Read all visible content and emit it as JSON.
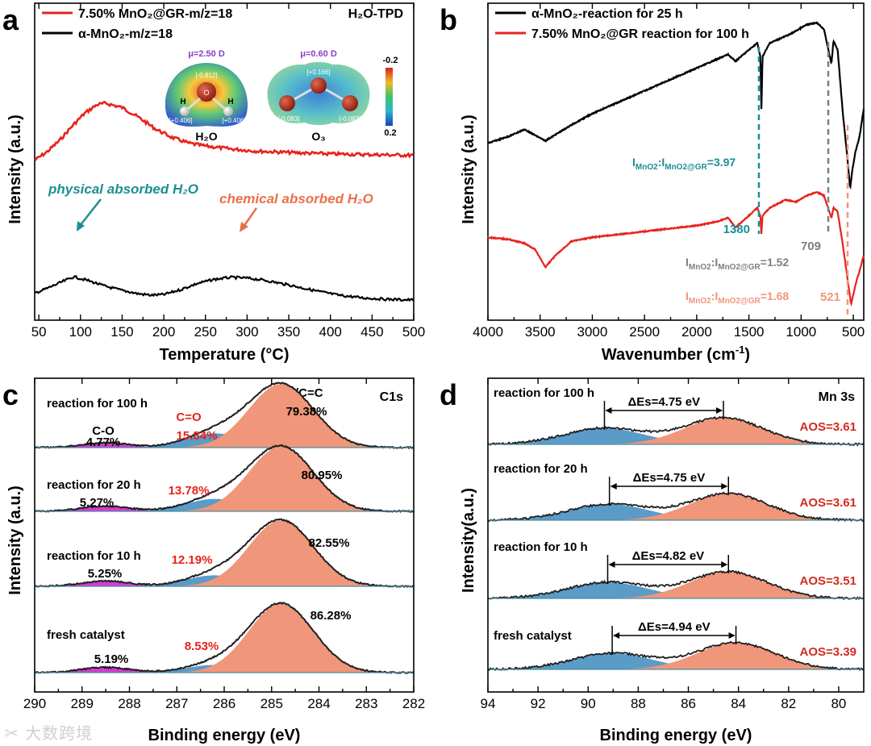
{
  "panels": {
    "a": {
      "letter": "a",
      "corner_label": "H₂O-TPD",
      "legend": [
        "7.50% MnO₂@GR-m/z=18",
        "α-MnO₂-m/z=18"
      ],
      "annotations": {
        "physical": "physical absorbed H₂O",
        "chemical": "chemical absorbed H₂O"
      },
      "inset": {
        "h2o": {
          "mu": "μ=2.50 D",
          "label": "H₂O",
          "charges": [
            "[-0.812]",
            "[+0.406]",
            "[+0.406]"
          ],
          "atoms": [
            "O",
            "H",
            "H"
          ]
        },
        "o3": {
          "mu": "μ=0.60 D",
          "label": "O₃",
          "charges": [
            "[+0.166]",
            "[-0.083]",
            "[-0.083]"
          ]
        },
        "scale": [
          "-0.2",
          "0.2"
        ]
      }
    },
    "b": {
      "letter": "b",
      "legend": [
        "α-MnO₂-reaction for 25 h",
        "7.50% MnO₂@GR reaction for 100 h"
      ],
      "peaks": [
        "1380",
        "709",
        "521"
      ],
      "ratios": [
        {
          "text": "I",
          "sub1": "MnO2",
          "mid": ":I",
          "sub2": "MnO2@GR",
          "val": "=3.97"
        },
        {
          "text": "I",
          "sub1": "MnO2",
          "mid": ":I",
          "sub2": "MnO2@GR",
          "val": "=1.52"
        },
        {
          "text": "I",
          "sub1": "MnO2",
          "mid": ":I",
          "sub2": "MnO2@GR",
          "val": "=1.68"
        }
      ]
    },
    "c": {
      "letter": "c",
      "corner_label": "C1s",
      "peak_label": "C-C/C=C",
      "rows": [
        {
          "name": "reaction for 100 h",
          "co_label": "C-O",
          "co": "4.77%",
          "ceo_label": "C=O",
          "ceo": "15.84%",
          "cc": "79.38%"
        },
        {
          "name": "reaction for 20 h",
          "co": "5.27%",
          "ceo": "13.78%",
          "cc": "80.95%"
        },
        {
          "name": "reaction for 10 h",
          "co": "5.25%",
          "ceo": "12.19%",
          "cc": "82.55%"
        },
        {
          "name": "fresh catalyst",
          "co": "5.19%",
          "ceo": "8.53%",
          "cc": "86.28%"
        }
      ]
    },
    "d": {
      "letter": "d",
      "corner_label": "Mn 3s",
      "rows": [
        {
          "name": "reaction for 100 h",
          "des": "ΔEs=4.75 eV",
          "aos": "AOS=3.61"
        },
        {
          "name": "reaction for 20 h",
          "des": "ΔEs=4.75 eV",
          "aos": "AOS=3.61"
        },
        {
          "name": "reaction for 10 h",
          "des": "ΔEs=4.82 eV",
          "aos": "AOS=3.51"
        },
        {
          "name": "fresh catalyst",
          "des": "ΔEs=4.94 eV",
          "aos": "AOS=3.39"
        }
      ]
    }
  },
  "watermark": "大数跨境",
  "colors": {
    "red": "#e8221c",
    "black": "#000000",
    "teal": "#1a8f94",
    "gray": "#7f7f7f",
    "orange": "#f0967a",
    "blue": "#5b9bc8",
    "magenta": "#d53bd0",
    "dark_red": "#d42a22"
  },
  "chart_data": [
    {
      "type": "line",
      "title": "",
      "xlabel": "Temperature (°C)",
      "ylabel": "Intensity (a.u.)",
      "xlim": [
        45,
        500
      ],
      "xticks": [
        50,
        100,
        150,
        200,
        250,
        300,
        350,
        400,
        450,
        500
      ],
      "yticks": "none",
      "series": [
        {
          "name": "7.50% MnO₂@GR-m/z=18",
          "color": "#e8221c",
          "x": [
            45,
            60,
            75,
            90,
            105,
            120,
            130,
            150,
            170,
            190,
            210,
            230,
            250,
            280,
            310,
            350,
            400,
            450,
            500
          ],
          "y": [
            0.6,
            0.66,
            0.74,
            0.84,
            0.93,
            0.99,
            1.0,
            0.97,
            0.9,
            0.82,
            0.76,
            0.72,
            0.7,
            0.68,
            0.665,
            0.655,
            0.645,
            0.64,
            0.635
          ]
        },
        {
          "name": "α-MnO₂-m/z=18",
          "color": "#000000",
          "x": [
            45,
            60,
            75,
            92,
            110,
            130,
            150,
            170,
            185,
            200,
            220,
            240,
            260,
            280,
            300,
            320,
            350,
            380,
            410,
            440,
            470,
            500
          ],
          "y": [
            0.1,
            0.17,
            0.25,
            0.34,
            0.28,
            0.2,
            0.14,
            0.09,
            0.07,
            0.08,
            0.15,
            0.24,
            0.3,
            0.33,
            0.32,
            0.29,
            0.22,
            0.14,
            0.07,
            0.03,
            0.01,
            0.0
          ]
        }
      ]
    },
    {
      "type": "line",
      "title": "",
      "xlabel": "Wavenumber (cm⁻¹)",
      "ylabel": "Intensity (a.u.)",
      "xlim": [
        4000,
        400
      ],
      "xticks": [
        4000,
        3500,
        3000,
        2500,
        2000,
        1500,
        1000,
        500
      ],
      "yticks": "none",
      "series": [
        {
          "name": "α-MnO₂-reaction for 25 h",
          "color": "#000000",
          "x": [
            4000,
            3800,
            3650,
            3450,
            3200,
            3000,
            2500,
            2000,
            1700,
            1630,
            1500,
            1420,
            1390,
            1380,
            1370,
            1300,
            1100,
            950,
            850,
            780,
            730,
            709,
            690,
            650,
            600,
            560,
            530,
            510,
            480,
            440,
            400
          ],
          "y": [
            0.47,
            0.5,
            0.53,
            0.48,
            0.55,
            0.6,
            0.7,
            0.8,
            0.86,
            0.83,
            0.88,
            0.91,
            0.85,
            0.62,
            0.85,
            0.91,
            0.95,
            0.99,
            1.0,
            0.97,
            0.86,
            0.82,
            0.92,
            0.88,
            0.6,
            0.42,
            0.27,
            0.35,
            0.43,
            0.5,
            0.62
          ]
        },
        {
          "name": "7.50% MnO₂@GR reaction for 100 h",
          "color": "#e8221c",
          "x": [
            4000,
            3800,
            3650,
            3550,
            3450,
            3350,
            3200,
            3000,
            2500,
            2000,
            1800,
            1700,
            1630,
            1500,
            1420,
            1390,
            1380,
            1370,
            1300,
            1150,
            1050,
            950,
            850,
            780,
            730,
            709,
            690,
            650,
            600,
            560,
            521,
            500,
            470,
            440,
            400
          ],
          "y": [
            0.37,
            0.36,
            0.34,
            0.31,
            0.22,
            0.28,
            0.35,
            0.37,
            0.4,
            0.43,
            0.45,
            0.47,
            0.42,
            0.48,
            0.52,
            0.48,
            0.39,
            0.48,
            0.52,
            0.56,
            0.55,
            0.58,
            0.6,
            0.58,
            0.5,
            0.47,
            0.52,
            0.5,
            0.33,
            0.18,
            0.03,
            0.08,
            0.15,
            0.2,
            0.28
          ]
        }
      ]
    },
    {
      "type": "area",
      "title": "",
      "xlabel": "Binding energy (eV)",
      "ylabel": "Intensity (a.u.)",
      "xlim": [
        290,
        282
      ],
      "xticks": [
        290,
        289,
        288,
        287,
        286,
        285,
        284,
        283,
        282
      ],
      "components": [
        "C-O",
        "C=O",
        "C-C/C=C"
      ],
      "series": [
        {
          "name": "reaction for 100 h",
          "peaks": {
            "C-O": 4.77,
            "C=O": 15.84,
            "C-C/C=C": 79.38
          },
          "cc_center": 284.8
        },
        {
          "name": "reaction for 20 h",
          "peaks": {
            "C-O": 5.27,
            "C=O": 13.78,
            "C-C/C=C": 80.95
          },
          "cc_center": 284.8
        },
        {
          "name": "reaction for 10 h",
          "peaks": {
            "C-O": 5.25,
            "C=O": 12.19,
            "C-C/C=C": 82.55
          },
          "cc_center": 284.8
        },
        {
          "name": "fresh catalyst",
          "peaks": {
            "C-O": 5.19,
            "C=O": 8.53,
            "C-C/C=C": 86.28
          },
          "cc_center": 284.8
        }
      ]
    },
    {
      "type": "area",
      "title": "",
      "xlabel": "Binding energy (eV)",
      "ylabel": "Intensity(a.u.)",
      "xlim": [
        94,
        79
      ],
      "xticks": [
        94,
        92,
        90,
        88,
        86,
        84,
        82,
        80
      ],
      "series": [
        {
          "name": "reaction for 100 h",
          "peak_low": 84.6,
          "peak_high": 89.35,
          "delta_es": 4.75,
          "aos": 3.61
        },
        {
          "name": "reaction for 20 h",
          "peak_low": 84.4,
          "peak_high": 89.15,
          "delta_es": 4.75,
          "aos": 3.61
        },
        {
          "name": "reaction for 10 h",
          "peak_low": 84.4,
          "peak_high": 89.22,
          "delta_es": 4.82,
          "aos": 3.51
        },
        {
          "name": "fresh catalyst",
          "peak_low": 84.1,
          "peak_high": 89.04,
          "delta_es": 4.94,
          "aos": 3.39
        }
      ]
    }
  ]
}
